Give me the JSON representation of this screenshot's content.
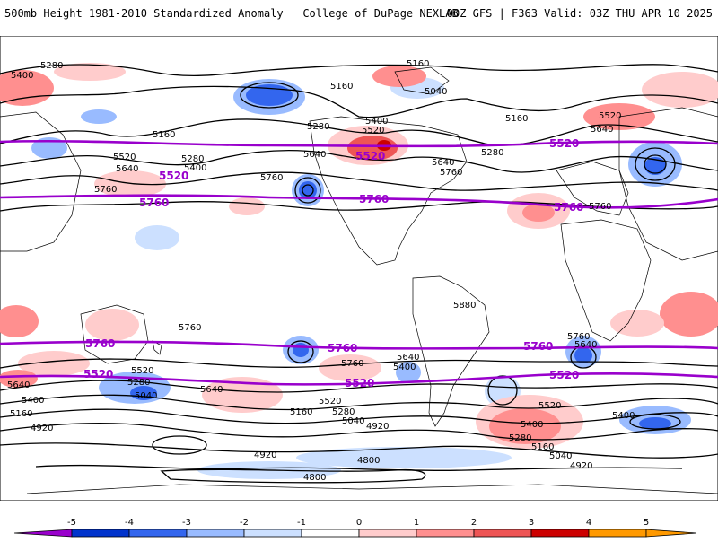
{
  "header": {
    "title_left": "500mb Height 1981-2010 Standardized Anomaly | College of DuPage NEXLAB",
    "title_right": "00Z GFS | F363 Valid: 03Z THU APR 10 2025"
  },
  "map": {
    "highlight_contours": [
      {
        "name": "5520",
        "color": "#9900cc"
      },
      {
        "name": "5760",
        "color": "#9900cc"
      }
    ],
    "contour_labels": [
      "5280",
      "5160",
      "5040",
      "5400",
      "5520",
      "5640",
      "5760",
      "5880",
      "4920",
      "4800"
    ],
    "north_labels": [
      {
        "t": "5280"
      },
      {
        "t": "5160"
      },
      {
        "t": "5400"
      },
      {
        "t": "5160"
      },
      {
        "t": "5040"
      },
      {
        "t": "5280"
      },
      {
        "t": "5400"
      },
      {
        "t": "5520"
      },
      {
        "t": "5640"
      },
      {
        "t": "5640"
      },
      {
        "t": "5760"
      },
      {
        "t": "5280"
      },
      {
        "t": "5160"
      },
      {
        "t": "5160"
      },
      {
        "t": "5520"
      },
      {
        "t": "5640"
      },
      {
        "t": "5520"
      },
      {
        "t": "5640"
      },
      {
        "t": "5280"
      },
      {
        "t": "5400"
      },
      {
        "t": "5760"
      },
      {
        "t": "5760"
      },
      {
        "t": "5760"
      }
    ],
    "south_labels": [
      {
        "t": "5880"
      },
      {
        "t": "5760"
      },
      {
        "t": "5760"
      },
      {
        "t": "5640"
      },
      {
        "t": "5400"
      },
      {
        "t": "5520"
      },
      {
        "t": "5280"
      },
      {
        "t": "5040"
      },
      {
        "t": "5640"
      },
      {
        "t": "5400"
      },
      {
        "t": "5160"
      },
      {
        "t": "4920"
      },
      {
        "t": "5640"
      },
      {
        "t": "5520"
      },
      {
        "t": "5160"
      },
      {
        "t": "5280"
      },
      {
        "t": "5040"
      },
      {
        "t": "4920"
      },
      {
        "t": "4800"
      },
      {
        "t": "4800"
      },
      {
        "t": "5520"
      },
      {
        "t": "5400"
      },
      {
        "t": "5280"
      },
      {
        "t": "5160"
      },
      {
        "t": "5040"
      },
      {
        "t": "4920"
      },
      {
        "t": "4920"
      },
      {
        "t": "5760"
      },
      {
        "t": "5640"
      },
      {
        "t": "5400"
      }
    ],
    "purple_labels": [
      {
        "t": "5520"
      },
      {
        "t": "5760"
      },
      {
        "t": "5520"
      },
      {
        "t": "5760"
      },
      {
        "t": "5520"
      },
      {
        "t": "5760"
      },
      {
        "t": "5760"
      },
      {
        "t": "5760"
      },
      {
        "t": "5760"
      },
      {
        "t": "5520"
      },
      {
        "t": "5520"
      },
      {
        "t": "5520"
      }
    ]
  },
  "colorbar": {
    "ticks": [
      "-5",
      "-4",
      "-3",
      "-2",
      "-1",
      "0",
      "1",
      "2",
      "3",
      "4",
      "5"
    ],
    "colors": [
      "#9900cc",
      "#0033cc",
      "#3366ee",
      "#99bbff",
      "#cce0ff",
      "#ffffff",
      "#ffcccc",
      "#ff8f8f",
      "#ee5555",
      "#cc0000",
      "#ff9900"
    ]
  }
}
